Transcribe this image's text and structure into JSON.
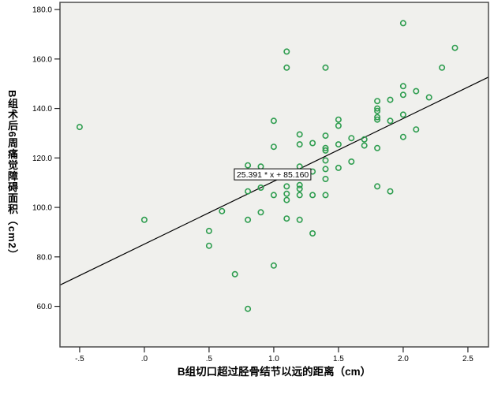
{
  "figure": {
    "background": "#ffffff",
    "plot_background": "#F0F0ED",
    "frame_color": "#4C4C4C",
    "tick_color": "#262626",
    "text_color": "#000000"
  },
  "chart_data": {
    "type": "scatter",
    "title": "",
    "xlabel": "B组切口超过胫骨结节以远的距离（cm）",
    "ylabel": "B组术后6周痛觉障碍面积（cm2）",
    "legend": "none",
    "grid": "off",
    "marker": {
      "shape": "open-circle",
      "color": "#2E9D4F",
      "radius_px": 3.2,
      "stroke_px": 1.6
    },
    "xlim": [
      -0.652,
      2.659
    ],
    "ylim": [
      43.6,
      182.9
    ],
    "x_ticks": {
      "values": [
        -0.5,
        0.0,
        0.5,
        1.0,
        1.5,
        2.0,
        2.5
      ],
      "labels": [
        "-.5",
        ".0",
        ".5",
        "1.0",
        "1.5",
        "2.0",
        "2.5"
      ]
    },
    "y_ticks": {
      "values": [
        60,
        80,
        100,
        120,
        140,
        160,
        180
      ],
      "labels": [
        "60.0",
        "80.0",
        "100.0",
        "120.0",
        "140.0",
        "160.0",
        "180.0"
      ]
    },
    "points": [
      [
        -0.5,
        132.5
      ],
      [
        0.0,
        95
      ],
      [
        0.5,
        90.5
      ],
      [
        0.5,
        84.5
      ],
      [
        0.6,
        98.5
      ],
      [
        0.7,
        73
      ],
      [
        0.8,
        117
      ],
      [
        0.8,
        106.5
      ],
      [
        0.8,
        95
      ],
      [
        0.8,
        59
      ],
      [
        0.9,
        116.5
      ],
      [
        0.9,
        108
      ],
      [
        0.9,
        98
      ],
      [
        1.0,
        135
      ],
      [
        1.0,
        124.5
      ],
      [
        1.0,
        105
      ],
      [
        1.0,
        76.5
      ],
      [
        1.1,
        163
      ],
      [
        1.1,
        156.5
      ],
      [
        1.1,
        108.5
      ],
      [
        1.1,
        105.5
      ],
      [
        1.1,
        103
      ],
      [
        1.1,
        95.5
      ],
      [
        1.2,
        129.5
      ],
      [
        1.2,
        125.5
      ],
      [
        1.2,
        116.5
      ],
      [
        1.2,
        109
      ],
      [
        1.2,
        107.5
      ],
      [
        1.2,
        105
      ],
      [
        1.2,
        95
      ],
      [
        1.3,
        126
      ],
      [
        1.3,
        114.5
      ],
      [
        1.3,
        105
      ],
      [
        1.3,
        89.5
      ],
      [
        1.4,
        156.5
      ],
      [
        1.4,
        129
      ],
      [
        1.4,
        124
      ],
      [
        1.4,
        123
      ],
      [
        1.4,
        119
      ],
      [
        1.4,
        115.5
      ],
      [
        1.4,
        111.5
      ],
      [
        1.4,
        105
      ],
      [
        1.5,
        135.5
      ],
      [
        1.5,
        133
      ],
      [
        1.5,
        125.5
      ],
      [
        1.5,
        116
      ],
      [
        1.6,
        128
      ],
      [
        1.6,
        118.5
      ],
      [
        1.7,
        127.5
      ],
      [
        1.7,
        125
      ],
      [
        1.8,
        143
      ],
      [
        1.8,
        140
      ],
      [
        1.8,
        139
      ],
      [
        1.8,
        136.5
      ],
      [
        1.8,
        135.5
      ],
      [
        1.8,
        124
      ],
      [
        1.8,
        108.5
      ],
      [
        1.9,
        143.5
      ],
      [
        1.9,
        135
      ],
      [
        1.9,
        106.5
      ],
      [
        2.0,
        174.5
      ],
      [
        2.0,
        149
      ],
      [
        2.0,
        145.5
      ],
      [
        2.0,
        137.5
      ],
      [
        2.0,
        128.5
      ],
      [
        2.1,
        147
      ],
      [
        2.1,
        131.5
      ],
      [
        2.2,
        144.5
      ],
      [
        2.3,
        156.5
      ],
      [
        2.4,
        164.5
      ]
    ],
    "fit_line": {
      "slope": 25.391,
      "intercept": 85.16,
      "color": "#000000",
      "label": "25.391 * x + 85.160"
    },
    "annotation": {
      "text": "25.391 * x + 85.160",
      "anchor_x": 0.695,
      "anchor_y": 115.6
    }
  }
}
